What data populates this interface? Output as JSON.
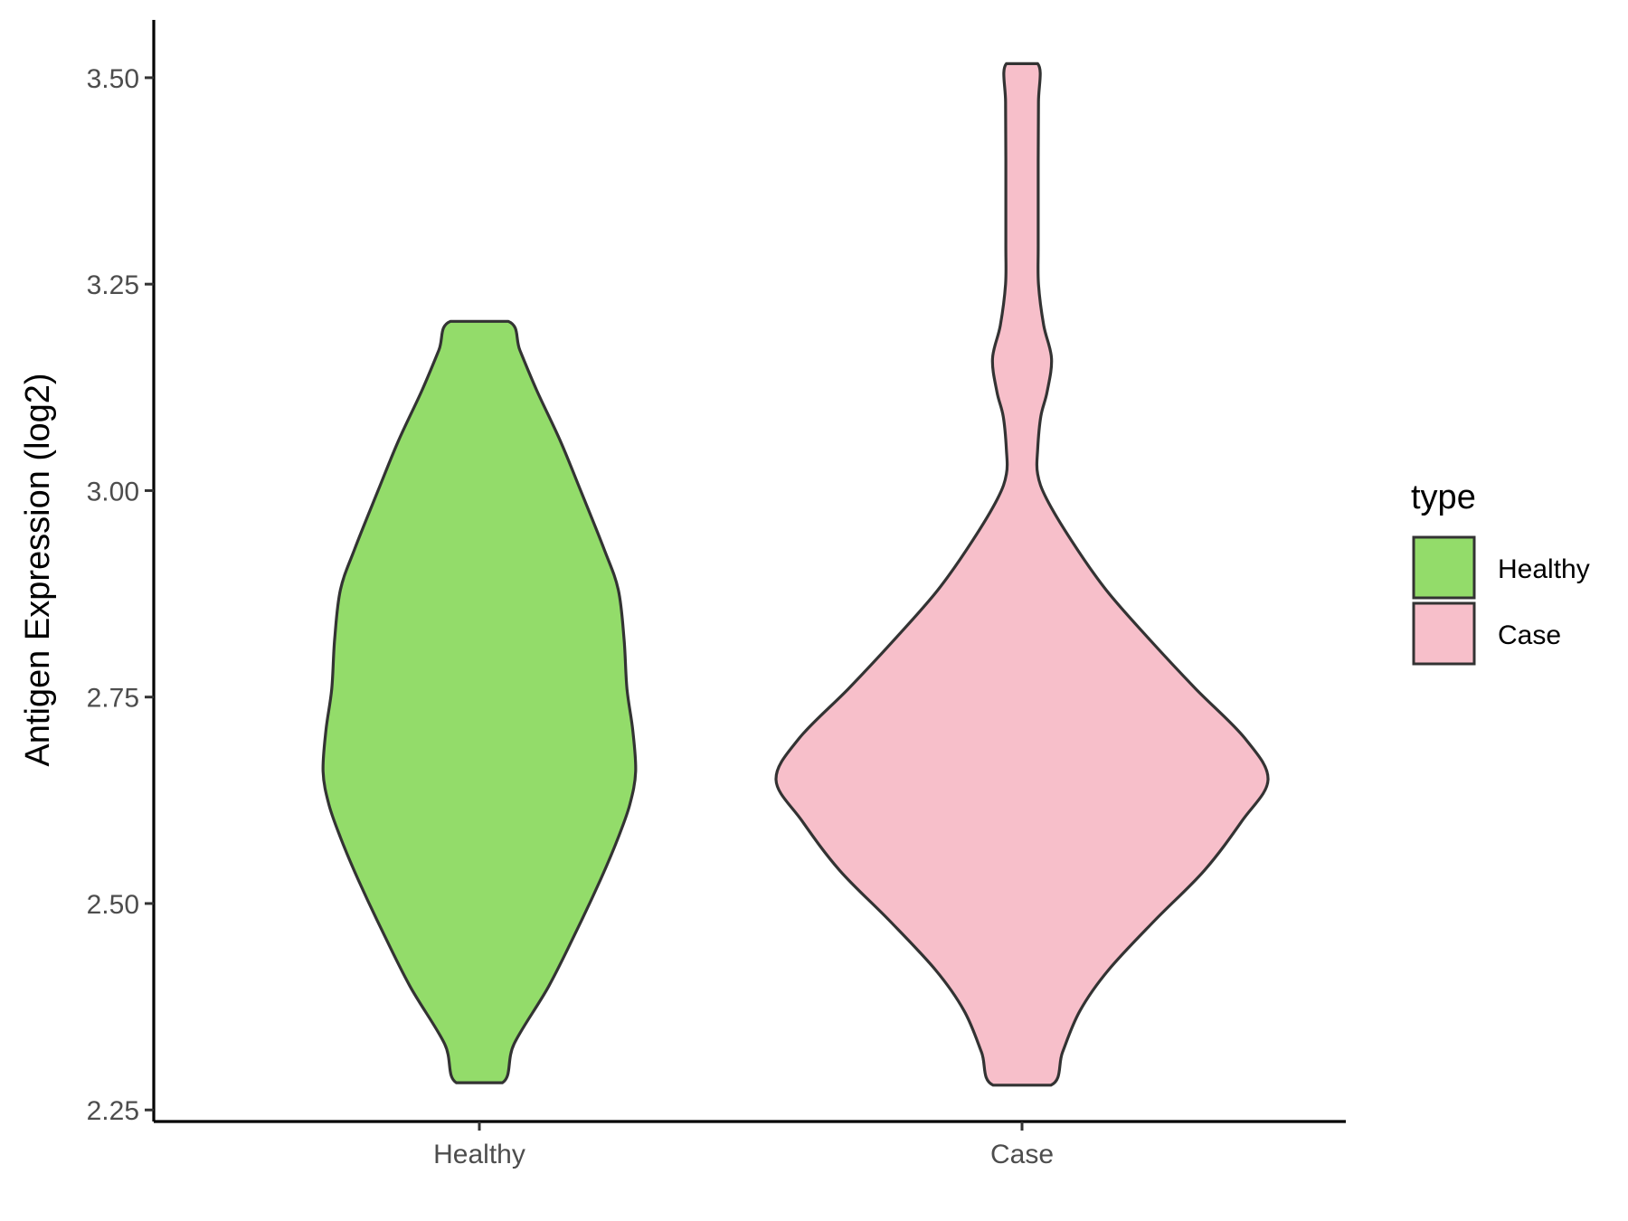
{
  "chart_data": {
    "type": "violin",
    "title": "",
    "xlabel": "",
    "ylabel": "Antigen Expression (log2)",
    "ylim": [
      2.236,
      3.57
    ],
    "yticks": [
      "2.25",
      "2.50",
      "2.75",
      "3.00",
      "3.25",
      "3.50"
    ],
    "ytick_values": [
      2.25,
      2.5,
      2.75,
      3.0,
      3.25,
      3.5
    ],
    "categories": [
      "Healthy",
      "Case"
    ],
    "grid": false,
    "legend": {
      "title": "type",
      "position": "right",
      "entries": [
        {
          "label": "Healthy",
          "color": "#93DC6A"
        },
        {
          "label": "Case",
          "color": "#F7BFCA"
        }
      ]
    },
    "outline_color": "#333333",
    "series": [
      {
        "name": "Healthy",
        "color": "#93DC6A",
        "min": 2.283,
        "max": 3.205,
        "density_profile": [
          [
            2.283,
            0.08
          ],
          [
            2.33,
            0.12
          ],
          [
            2.4,
            0.24
          ],
          [
            2.47,
            0.34
          ],
          [
            2.53,
            0.42
          ],
          [
            2.58,
            0.48
          ],
          [
            2.62,
            0.52
          ],
          [
            2.66,
            0.54
          ],
          [
            2.71,
            0.53
          ],
          [
            2.76,
            0.51
          ],
          [
            2.82,
            0.5
          ],
          [
            2.88,
            0.48
          ],
          [
            2.93,
            0.43
          ],
          [
            3.0,
            0.35
          ],
          [
            3.06,
            0.28
          ],
          [
            3.12,
            0.2
          ],
          [
            3.17,
            0.14
          ],
          [
            3.205,
            0.1
          ]
        ]
      },
      {
        "name": "Case",
        "color": "#F7BFCA",
        "min": 2.28,
        "max": 3.517,
        "density_profile": [
          [
            2.28,
            0.1
          ],
          [
            2.32,
            0.14
          ],
          [
            2.37,
            0.2
          ],
          [
            2.42,
            0.3
          ],
          [
            2.48,
            0.46
          ],
          [
            2.54,
            0.63
          ],
          [
            2.6,
            0.76
          ],
          [
            2.65,
            0.85
          ],
          [
            2.7,
            0.77
          ],
          [
            2.76,
            0.6
          ],
          [
            2.82,
            0.44
          ],
          [
            2.88,
            0.29
          ],
          [
            2.94,
            0.17
          ],
          [
            2.99,
            0.085
          ],
          [
            3.02,
            0.054
          ],
          [
            3.05,
            0.054
          ],
          [
            3.09,
            0.065
          ],
          [
            3.12,
            0.087
          ],
          [
            3.16,
            0.102
          ],
          [
            3.2,
            0.075
          ],
          [
            3.25,
            0.057
          ],
          [
            3.3,
            0.056
          ],
          [
            3.4,
            0.056
          ],
          [
            3.47,
            0.057
          ],
          [
            3.517,
            0.054
          ]
        ]
      }
    ]
  }
}
